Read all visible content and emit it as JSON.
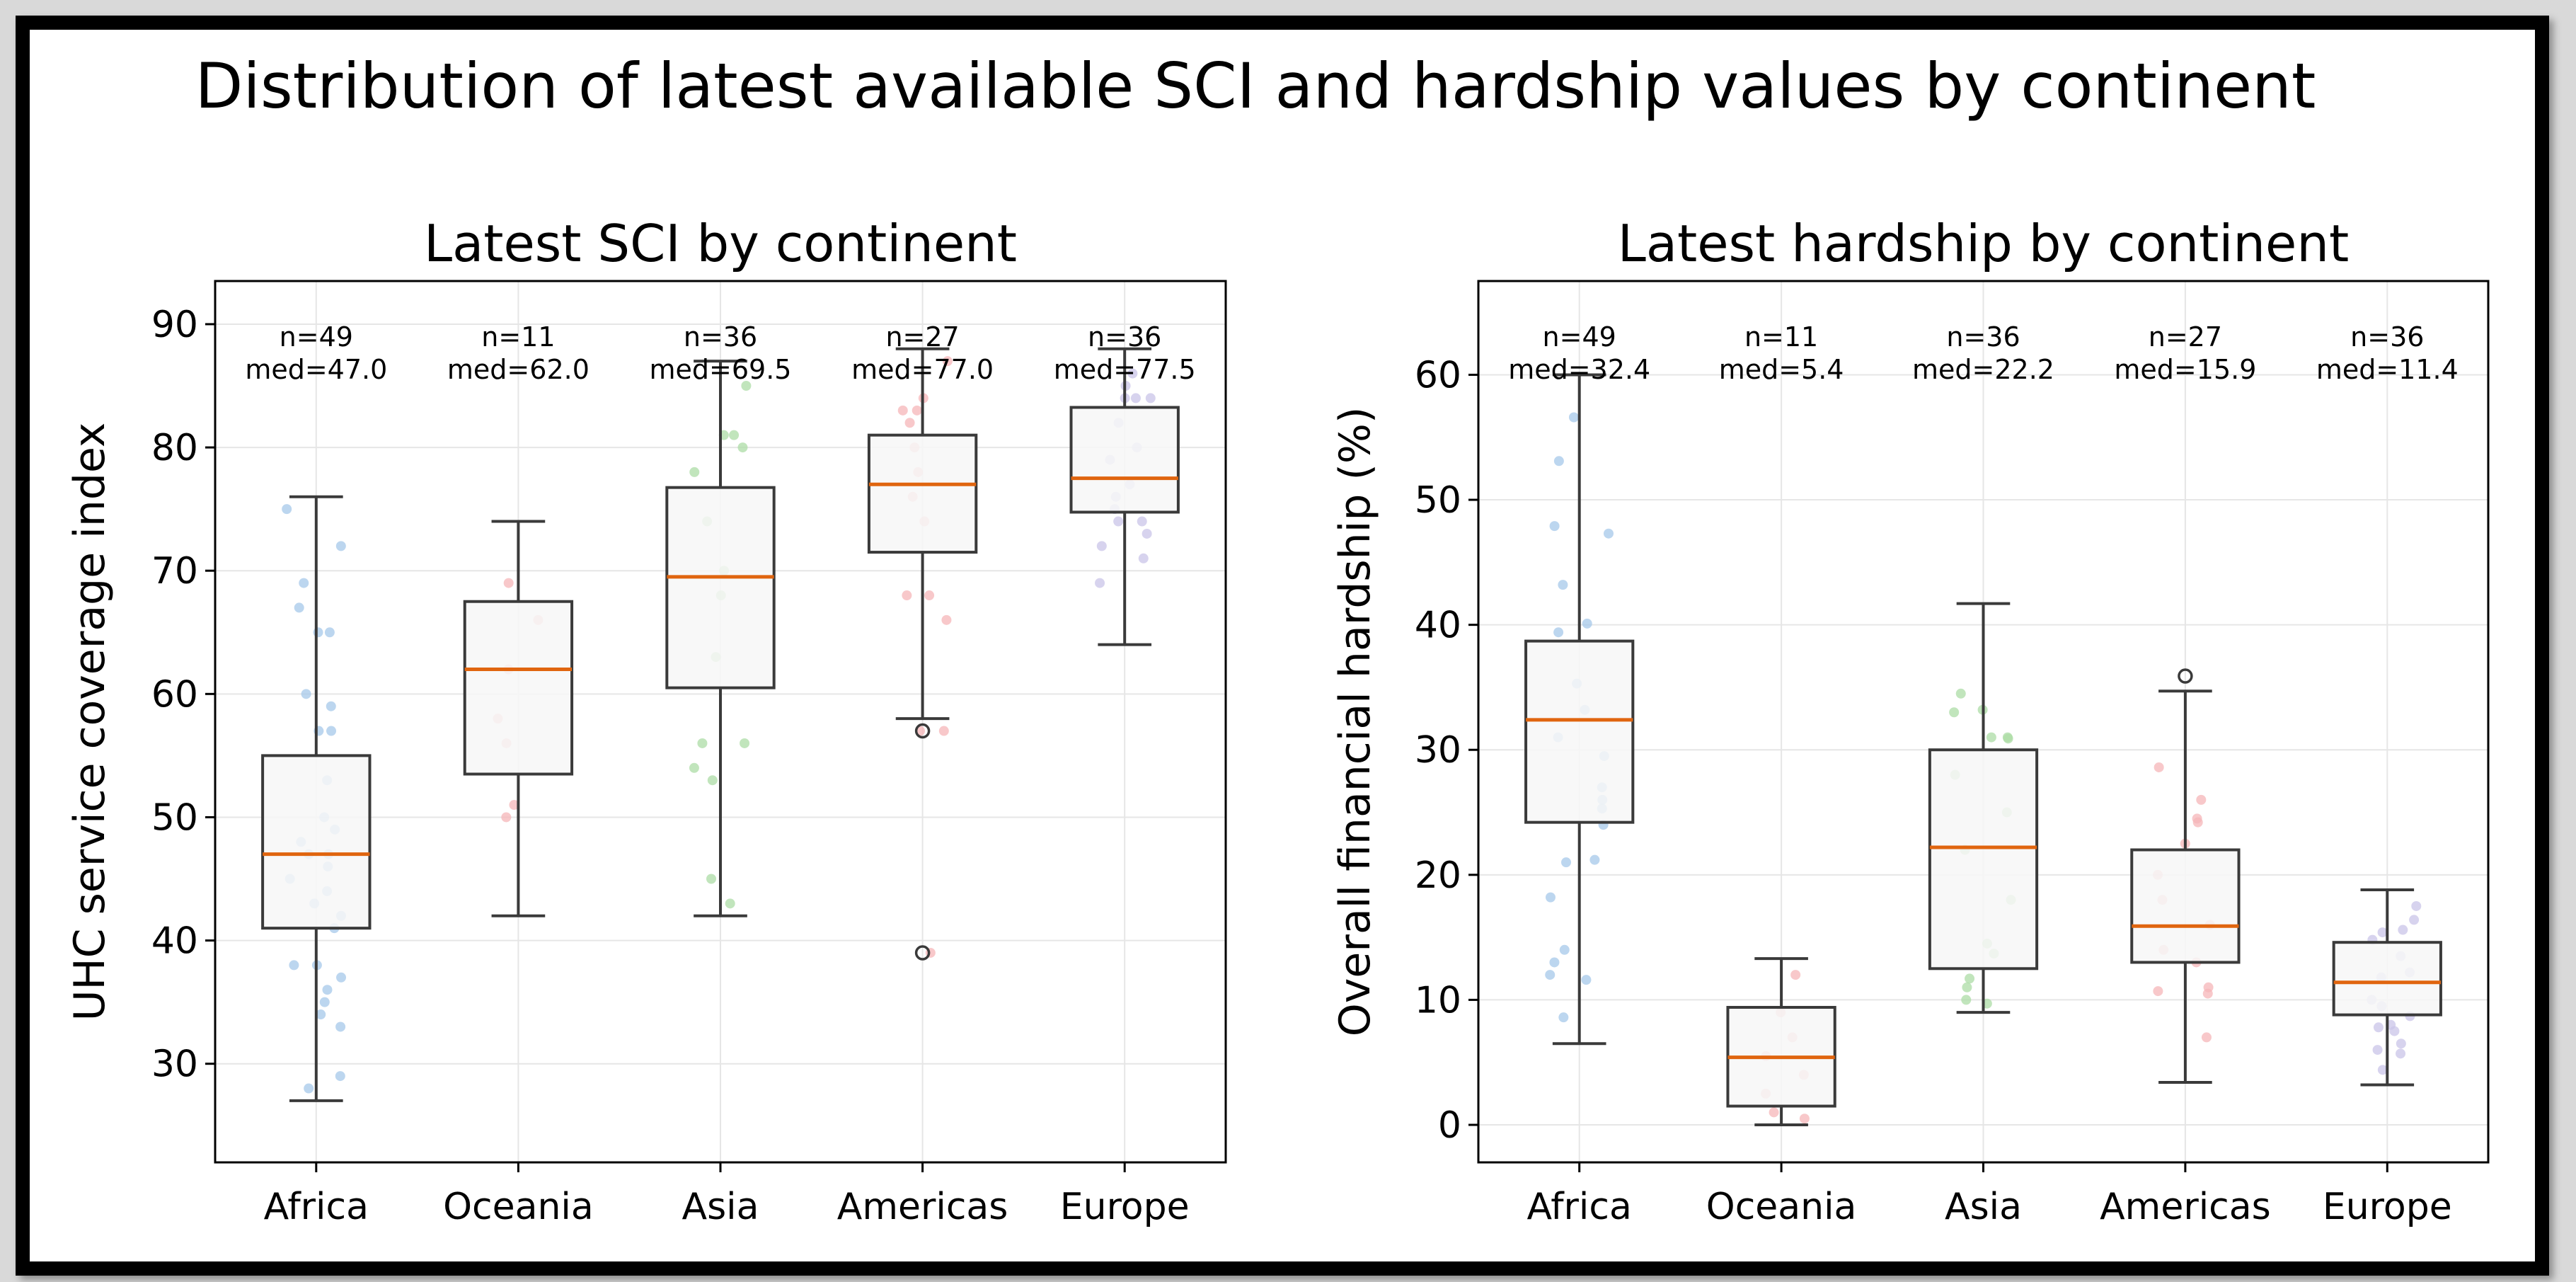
{
  "figure_title": "Distribution of latest available SCI and hardship values by continent",
  "colors": {
    "median": "#e0650f",
    "box_fill": "#f7f7f7",
    "box_edge": "#3a3a3a",
    "grid": "#e6e6e6",
    "points": [
      "#a6c8ea",
      "#f5b5b8",
      "#acdca5",
      "#f5b5b8",
      "#c9c4e8"
    ]
  },
  "chart_data": [
    {
      "type": "box",
      "title": "Latest SCI by continent",
      "xlabel": "",
      "ylabel": "UHC service coverage index",
      "categories": [
        "Africa",
        "Oceania",
        "Asia",
        "Americas",
        "Europe"
      ],
      "ylim": [
        22,
        93.5
      ],
      "yticks": [
        30,
        40,
        50,
        60,
        70,
        80,
        90
      ],
      "grid": true,
      "annotations": [
        {
          "n": "n=49",
          "med": "med=47.0"
        },
        {
          "n": "n=11",
          "med": "med=62.0"
        },
        {
          "n": "n=36",
          "med": "med=69.5"
        },
        {
          "n": "n=27",
          "med": "med=77.0"
        },
        {
          "n": "n=36",
          "med": "med=77.5"
        }
      ],
      "boxes": [
        {
          "whislo": 27,
          "q1": 41,
          "med": 47,
          "q3": 55,
          "whishi": 76,
          "fliers": []
        },
        {
          "whislo": 42,
          "q1": 53.5,
          "med": 62,
          "q3": 67.5,
          "whishi": 74,
          "fliers": []
        },
        {
          "whislo": 42,
          "q1": 60.5,
          "med": 69.5,
          "q3": 76.75,
          "whishi": 87,
          "fliers": []
        },
        {
          "whislo": 58,
          "q1": 71.5,
          "med": 77,
          "q3": 81,
          "whishi": 88,
          "fliers": [
            57,
            39
          ]
        },
        {
          "whislo": 64,
          "q1": 74.75,
          "med": 77.5,
          "q3": 83.25,
          "whishi": 88,
          "fliers": []
        }
      ],
      "points": [
        [
          75,
          72,
          69,
          67,
          65,
          65,
          60,
          59,
          57,
          57,
          53,
          50,
          49,
          48,
          47,
          47,
          46,
          45,
          44,
          43,
          42,
          41,
          38,
          38,
          37,
          36,
          35,
          34,
          33,
          29,
          28
        ],
        [
          69,
          66,
          62,
          58,
          56,
          51,
          50
        ],
        [
          85,
          81,
          81,
          80,
          78,
          74,
          70,
          68,
          63,
          56,
          56,
          54,
          53,
          45,
          43
        ],
        [
          87,
          84,
          83,
          83,
          82,
          80,
          78,
          76,
          74,
          68,
          68,
          66,
          57,
          57,
          39
        ],
        [
          86,
          85,
          84,
          84,
          84,
          82,
          80,
          79,
          77,
          76,
          75,
          74,
          74,
          73,
          72,
          71,
          69
        ]
      ]
    },
    {
      "type": "box",
      "title": "Latest hardship by continent",
      "xlabel": "",
      "ylabel": "Overall financial hardship (%)",
      "categories": [
        "Africa",
        "Oceania",
        "Asia",
        "Americas",
        "Europe"
      ],
      "ylim": [
        -3,
        67.5
      ],
      "yticks": [
        0,
        10,
        20,
        30,
        40,
        50,
        60
      ],
      "grid": true,
      "annotations": [
        {
          "n": "n=49",
          "med": "med=32.4"
        },
        {
          "n": "n=11",
          "med": "med=5.4"
        },
        {
          "n": "n=36",
          "med": "med=22.2"
        },
        {
          "n": "n=27",
          "med": "med=15.9"
        },
        {
          "n": "n=36",
          "med": "med=11.4"
        }
      ],
      "boxes": [
        {
          "whislo": 6.5,
          "q1": 24.2,
          "med": 32.4,
          "q3": 38.7,
          "whishi": 60,
          "fliers": []
        },
        {
          "whislo": 0,
          "q1": 1.5,
          "med": 5.4,
          "q3": 9.4,
          "whishi": 13.3,
          "fliers": []
        },
        {
          "whislo": 9,
          "q1": 12.5,
          "med": 22.2,
          "q3": 30,
          "whishi": 41.7,
          "fliers": []
        },
        {
          "whislo": 3.4,
          "q1": 13,
          "med": 15.9,
          "q3": 22,
          "whishi": 34.7,
          "fliers": [
            35.9
          ]
        },
        {
          "whislo": 3.2,
          "q1": 8.8,
          "med": 11.4,
          "q3": 14.6,
          "whishi": 18.8,
          "fliers": []
        }
      ],
      "points": [
        [
          56.6,
          53.1,
          47.9,
          47.3,
          43.2,
          40.1,
          39.4,
          35.3,
          33.2,
          31,
          29.5,
          27,
          26,
          25.3,
          24,
          21.2,
          21,
          18.2,
          14,
          13,
          12,
          11.6,
          8.6
        ],
        [
          12,
          9,
          7,
          5.5,
          4,
          2.5,
          1,
          0.5
        ],
        [
          34.5,
          33.2,
          33,
          31,
          31,
          30.9,
          28,
          25,
          22,
          18,
          14.5,
          13.7,
          11.7,
          11,
          10,
          9.7
        ],
        [
          28.6,
          26,
          24.5,
          24.2,
          22.5,
          20,
          18,
          16,
          14,
          13,
          11,
          10.7,
          10.5,
          7
        ],
        [
          17.5,
          16.4,
          15.6,
          15.4,
          14.8,
          13.5,
          12.2,
          11.8,
          10,
          9.5,
          8.7,
          8,
          7.8,
          7.5,
          6.5,
          6,
          5.7,
          4.4
        ]
      ]
    }
  ]
}
